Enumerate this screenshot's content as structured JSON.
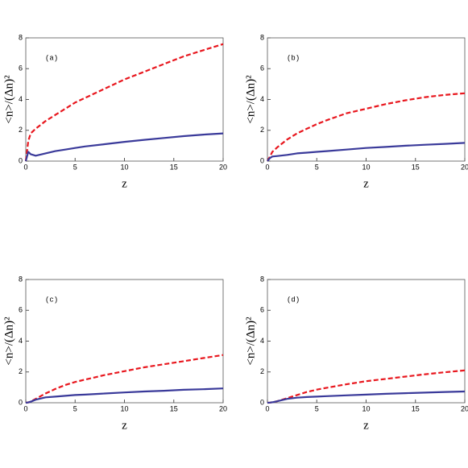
{
  "chart_data": [
    {
      "type": "line",
      "label": "(a)",
      "x_label": "z",
      "y_label": "<n>/(Δn)²",
      "x": [
        0,
        0.25,
        0.5,
        1,
        2,
        3,
        4,
        5,
        6,
        8,
        10,
        12,
        14,
        16,
        18,
        20
      ],
      "series": [
        {
          "color": "#e8171e",
          "dashed": true,
          "values": [
            0,
            1.3,
            1.8,
            2.1,
            2.6,
            3.0,
            3.4,
            3.8,
            4.1,
            4.7,
            5.3,
            5.8,
            6.3,
            6.8,
            7.2,
            7.6
          ]
        },
        {
          "color": "#3a3a9a",
          "dashed": false,
          "values": [
            0,
            0.6,
            0.45,
            0.35,
            0.5,
            0.65,
            0.75,
            0.85,
            0.95,
            1.1,
            1.25,
            1.38,
            1.5,
            1.62,
            1.72,
            1.8
          ]
        }
      ],
      "xlim": [
        0,
        20
      ],
      "xticks": [
        0,
        5,
        10,
        15,
        20
      ],
      "ylim": [
        0,
        8
      ],
      "yticks": [
        0,
        2,
        4,
        6,
        8
      ]
    },
    {
      "type": "line",
      "label": "(b)",
      "x_label": "z",
      "y_label": "<n>/(Δn)²",
      "x": [
        0,
        0.25,
        0.5,
        1,
        2,
        3,
        4,
        5,
        6,
        8,
        10,
        12,
        14,
        16,
        18,
        20
      ],
      "series": [
        {
          "color": "#e8171e",
          "dashed": true,
          "values": [
            0,
            0.3,
            0.6,
            0.9,
            1.4,
            1.8,
            2.1,
            2.4,
            2.65,
            3.1,
            3.4,
            3.7,
            3.95,
            4.15,
            4.3,
            4.4
          ]
        },
        {
          "color": "#3a3a9a",
          "dashed": false,
          "values": [
            0,
            0.2,
            0.3,
            0.33,
            0.4,
            0.5,
            0.55,
            0.6,
            0.65,
            0.75,
            0.85,
            0.92,
            1.0,
            1.06,
            1.12,
            1.18
          ]
        }
      ],
      "xlim": [
        0,
        20
      ],
      "xticks": [
        0,
        5,
        10,
        15,
        20
      ],
      "ylim": [
        0,
        8
      ],
      "yticks": [
        0,
        2,
        4,
        6,
        8
      ]
    },
    {
      "type": "line",
      "label": "(c)",
      "x_label": "z",
      "y_label": "<n>/(Δn)²",
      "x": [
        0,
        0.25,
        0.5,
        1,
        2,
        3,
        4,
        5,
        6,
        8,
        10,
        12,
        14,
        16,
        18,
        20
      ],
      "series": [
        {
          "color": "#e8171e",
          "dashed": true,
          "values": [
            0,
            0.02,
            0.08,
            0.25,
            0.6,
            0.9,
            1.15,
            1.35,
            1.5,
            1.8,
            2.05,
            2.3,
            2.5,
            2.7,
            2.9,
            3.1
          ]
        },
        {
          "color": "#3a3a9a",
          "dashed": false,
          "values": [
            0,
            0.02,
            0.07,
            0.2,
            0.35,
            0.4,
            0.45,
            0.5,
            0.53,
            0.6,
            0.67,
            0.73,
            0.78,
            0.84,
            0.88,
            0.93
          ]
        }
      ],
      "xlim": [
        0,
        20
      ],
      "xticks": [
        0,
        5,
        10,
        15,
        20
      ],
      "ylim": [
        0,
        8
      ],
      "yticks": [
        0,
        2,
        4,
        6,
        8
      ]
    },
    {
      "type": "line",
      "label": "(d)",
      "x_label": "z",
      "y_label": "<n>/(Δn)²",
      "x": [
        0,
        0.25,
        0.5,
        1,
        2,
        3,
        4,
        5,
        6,
        8,
        10,
        12,
        14,
        16,
        18,
        20
      ],
      "series": [
        {
          "color": "#e8171e",
          "dashed": true,
          "values": [
            0,
            0.01,
            0.03,
            0.1,
            0.3,
            0.5,
            0.7,
            0.85,
            0.97,
            1.2,
            1.4,
            1.55,
            1.7,
            1.85,
            1.98,
            2.1
          ]
        },
        {
          "color": "#3a3a9a",
          "dashed": false,
          "values": [
            0,
            0.01,
            0.03,
            0.1,
            0.25,
            0.33,
            0.37,
            0.4,
            0.43,
            0.48,
            0.53,
            0.58,
            0.62,
            0.66,
            0.7,
            0.73
          ]
        }
      ],
      "xlim": [
        0,
        20
      ],
      "xticks": [
        0,
        5,
        10,
        15,
        20
      ],
      "ylim": [
        0,
        8
      ],
      "yticks": [
        0,
        2,
        4,
        6,
        8
      ]
    }
  ]
}
